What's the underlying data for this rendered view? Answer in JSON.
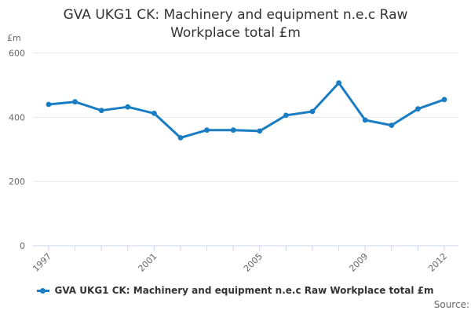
{
  "title": "GVA UKG1 CK: Machinery and equipment n.e.c Raw Workplace total £m",
  "source_label": "Source:",
  "colors": {
    "series": "#1a7dc3",
    "grid": "#e6e6e6",
    "axis": "#ccd6eb",
    "text_muted": "#666666",
    "text_dark": "#333333"
  },
  "legend": {
    "label": "GVA UKG1 CK: Machinery and equipment n.e.c Raw Workplace total £m"
  },
  "chart_data": {
    "type": "line",
    "title": "GVA UKG1 CK: Machinery and equipment n.e.c Raw Workplace total £m",
    "ylabel": "£m",
    "xlabel": "",
    "categories": [
      "1997",
      "1998",
      "1999",
      "2000",
      "2001",
      "2002",
      "2003",
      "2004",
      "2005",
      "2006",
      "2007",
      "2008",
      "2009",
      "2010",
      "2011",
      "2012"
    ],
    "values": [
      440,
      448,
      421,
      432,
      412,
      336,
      360,
      360,
      357,
      406,
      418,
      507,
      391,
      375,
      426,
      455
    ],
    "series_name": "GVA UKG1 CK: Machinery and equipment n.e.c Raw Workplace total £m",
    "x_tick_labels": [
      "1997",
      "2001",
      "2005",
      "2009",
      "2012"
    ],
    "labeled_indices": [
      0,
      4,
      8,
      12,
      15
    ],
    "y_ticks": [
      0,
      200,
      400,
      600
    ],
    "ylim": [
      0,
      600
    ],
    "grid": true,
    "legend_position": "bottom",
    "marker": "circle"
  }
}
